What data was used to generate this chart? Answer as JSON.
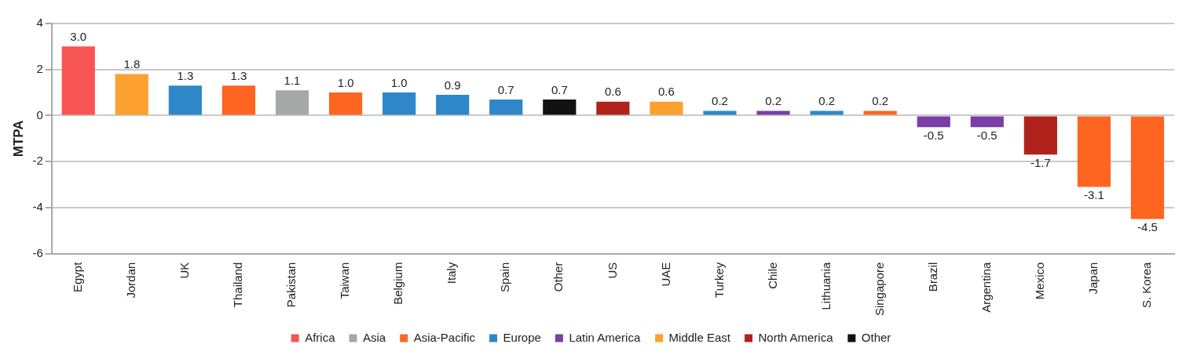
{
  "chart_data": {
    "type": "bar",
    "ylabel": "MTPA",
    "categories": [
      "Egypt",
      "Jordan",
      "UK",
      "Thailand",
      "Pakistan",
      "Taiwan",
      "Belgium",
      "Italy",
      "Spain",
      "Other",
      "US",
      "UAE",
      "Turkey",
      "Chile",
      "Lithuania",
      "Singapore",
      "Brazil",
      "Argentina",
      "Mexico",
      "Japan",
      "S. Korea"
    ],
    "series": [
      {
        "name": "Africa",
        "color": "#f75553",
        "values": [
          3.0,
          null,
          null,
          null,
          null,
          null,
          null,
          null,
          null,
          null,
          null,
          null,
          null,
          null,
          null,
          null,
          null,
          null,
          null,
          null,
          null
        ],
        "value_labels": [
          "3.0",
          null,
          null,
          null,
          null,
          null,
          null,
          null,
          null,
          null,
          null,
          null,
          null,
          null,
          null,
          null,
          null,
          null,
          null,
          null,
          null
        ]
      },
      {
        "name": "Asia",
        "color": "#a5a8a6",
        "values": [
          null,
          null,
          null,
          null,
          1.1,
          null,
          null,
          null,
          null,
          null,
          null,
          null,
          null,
          null,
          null,
          null,
          null,
          null,
          null,
          null,
          null
        ],
        "value_labels": [
          null,
          null,
          null,
          null,
          "1.1",
          null,
          null,
          null,
          null,
          null,
          null,
          null,
          null,
          null,
          null,
          null,
          null,
          null,
          null,
          null,
          null
        ]
      },
      {
        "name": "Asia-Pacific",
        "color": "#fd6520",
        "values": [
          null,
          null,
          null,
          1.3,
          null,
          1.0,
          null,
          null,
          null,
          null,
          null,
          null,
          null,
          null,
          null,
          0.2,
          null,
          null,
          null,
          -3.1,
          -4.5
        ],
        "value_labels": [
          null,
          null,
          null,
          "1.3",
          null,
          "1.0",
          null,
          null,
          null,
          null,
          null,
          null,
          null,
          null,
          null,
          "0.2",
          null,
          null,
          null,
          "-3.1",
          "-4.5"
        ]
      },
      {
        "name": "Europe",
        "color": "#2d87c8",
        "values": [
          null,
          null,
          1.3,
          null,
          null,
          null,
          1.0,
          0.9,
          0.7,
          null,
          null,
          null,
          0.2,
          null,
          0.2,
          null,
          null,
          null,
          null,
          null,
          null
        ],
        "value_labels": [
          null,
          null,
          "1.3",
          null,
          null,
          null,
          "1.0",
          "0.9",
          "0.7",
          null,
          null,
          null,
          "0.2",
          null,
          "0.2",
          null,
          null,
          null,
          null,
          null,
          null
        ]
      },
      {
        "name": "Latin America",
        "color": "#7a3ea5",
        "values": [
          null,
          null,
          null,
          null,
          null,
          null,
          null,
          null,
          null,
          null,
          null,
          null,
          null,
          0.2,
          null,
          null,
          -0.5,
          -0.5,
          null,
          null,
          null
        ],
        "value_labels": [
          null,
          null,
          null,
          null,
          null,
          null,
          null,
          null,
          null,
          null,
          null,
          null,
          null,
          "0.2",
          null,
          null,
          "-0.5",
          "-0.5",
          null,
          null,
          null
        ]
      },
      {
        "name": "Middle East",
        "color": "#fca030",
        "values": [
          null,
          1.8,
          null,
          null,
          null,
          null,
          null,
          null,
          null,
          null,
          null,
          0.6,
          null,
          null,
          null,
          null,
          null,
          null,
          null,
          null,
          null
        ],
        "value_labels": [
          null,
          "1.8",
          null,
          null,
          null,
          null,
          null,
          null,
          null,
          null,
          null,
          "0.6",
          null,
          null,
          null,
          null,
          null,
          null,
          null,
          null,
          null
        ]
      },
      {
        "name": "North America",
        "color": "#b0231c",
        "values": [
          null,
          null,
          null,
          null,
          null,
          null,
          null,
          null,
          null,
          null,
          0.6,
          null,
          null,
          null,
          null,
          null,
          null,
          null,
          -1.7,
          null,
          null
        ],
        "value_labels": [
          null,
          null,
          null,
          null,
          null,
          null,
          null,
          null,
          null,
          null,
          "0.6",
          null,
          null,
          null,
          null,
          null,
          null,
          null,
          "-1.7",
          null,
          null
        ]
      },
      {
        "name": "Other",
        "color": "#111111",
        "values": [
          null,
          null,
          null,
          null,
          null,
          null,
          null,
          null,
          null,
          0.7,
          null,
          null,
          null,
          null,
          null,
          null,
          null,
          null,
          null,
          null,
          null
        ],
        "value_labels": [
          null,
          null,
          null,
          null,
          null,
          null,
          null,
          null,
          null,
          "0.7",
          null,
          null,
          null,
          null,
          null,
          null,
          null,
          null,
          null,
          null,
          null
        ]
      }
    ],
    "ylim": [
      -6,
      4
    ],
    "yticks": [
      -6,
      -4,
      -2,
      0,
      2,
      4
    ],
    "grid": "y",
    "legend": "bottom"
  }
}
